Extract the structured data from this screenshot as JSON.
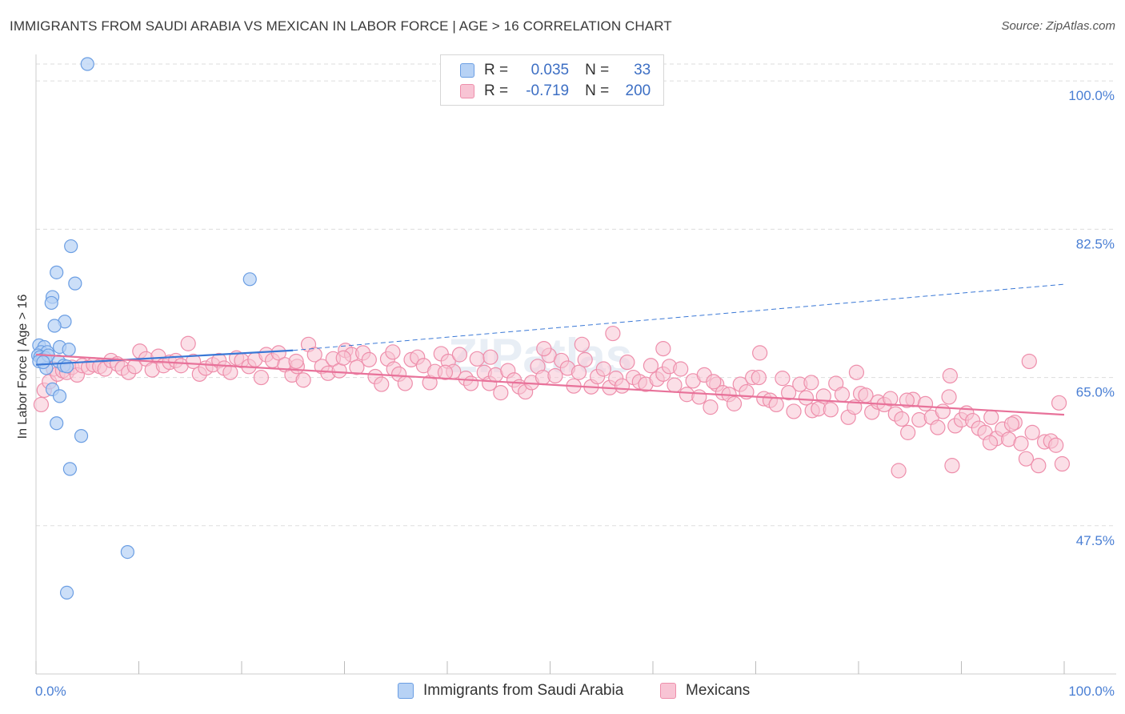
{
  "title": "IMMIGRANTS FROM SAUDI ARABIA VS MEXICAN IN LABOR FORCE | AGE > 16 CORRELATION CHART",
  "source": "Source: ZipAtlas.com",
  "watermark": "ZIPatlas",
  "legend": {
    "series1": {
      "r_label": "R =",
      "r_value": "0.035",
      "n_label": "N =",
      "n_value": "33"
    },
    "series2": {
      "r_label": "R =",
      "r_value": "-0.719",
      "n_label": "N =",
      "n_value": "200"
    }
  },
  "colors": {
    "blue_fill": "#b7d2f5",
    "blue_stroke": "#6b9ee3",
    "blue_line": "#3a78d6",
    "pink_fill": "#f8c4d4",
    "pink_stroke": "#ee8eab",
    "pink_line": "#e8729a",
    "grid": "#dddddd",
    "tick_text": "#4a7fd4"
  },
  "chart_data": {
    "type": "scatter",
    "title": "IMMIGRANTS FROM SAUDI ARABIA VS MEXICAN IN LABOR FORCE | AGE > 16 CORRELATION CHART",
    "xlabel": "",
    "ylabel": "In Labor Force | Age > 16",
    "xlim": [
      0,
      100
    ],
    "ylim": [
      30,
      102
    ],
    "x_tick_labels": [
      "0.0%",
      "100.0%"
    ],
    "y_ticks": [
      100,
      82.5,
      65,
      47.5
    ],
    "y_tick_labels": [
      "100.0%",
      "82.5%",
      "65.0%",
      "47.5%"
    ],
    "series": [
      {
        "name": "Immigrants from Saudi Arabia",
        "color": "blue",
        "trend": {
          "x": [
            0,
            25
          ],
          "y": [
            66.5,
            68.2
          ],
          "dashed_extension": {
            "x": [
              25,
              100
            ],
            "y": [
              68.2,
              76.0
            ]
          }
        },
        "points": [
          [
            5.0,
            102.0
          ],
          [
            3.4,
            80.5
          ],
          [
            2.0,
            77.4
          ],
          [
            3.8,
            76.1
          ],
          [
            20.8,
            76.6
          ],
          [
            1.6,
            74.5
          ],
          [
            1.5,
            73.8
          ],
          [
            2.8,
            71.6
          ],
          [
            1.8,
            71.1
          ],
          [
            0.3,
            68.8
          ],
          [
            0.8,
            68.6
          ],
          [
            2.3,
            68.6
          ],
          [
            3.2,
            68.3
          ],
          [
            0.5,
            68.0
          ],
          [
            1.1,
            68.0
          ],
          [
            0.2,
            67.6
          ],
          [
            0.4,
            67.4
          ],
          [
            0.9,
            67.3
          ],
          [
            0.6,
            67.1
          ],
          [
            0.3,
            66.9
          ],
          [
            1.2,
            67.6
          ],
          [
            2.2,
            66.9
          ],
          [
            2.7,
            66.4
          ],
          [
            1.0,
            66.1
          ],
          [
            3.0,
            66.3
          ],
          [
            1.6,
            63.6
          ],
          [
            2.3,
            62.8
          ],
          [
            2.0,
            59.6
          ],
          [
            4.4,
            58.1
          ],
          [
            3.3,
            54.2
          ],
          [
            8.9,
            44.4
          ],
          [
            3.0,
            39.6
          ],
          [
            0.7,
            66.8
          ]
        ]
      },
      {
        "name": "Mexicans",
        "color": "pink",
        "trend": {
          "x": [
            0,
            100
          ],
          "y": [
            67.7,
            60.6
          ]
        },
        "points": [
          [
            0.5,
            61.8
          ],
          [
            0.8,
            63.5
          ],
          [
            1.3,
            64.5
          ],
          [
            1.7,
            66.0
          ],
          [
            2.1,
            65.4
          ],
          [
            2.6,
            65.8
          ],
          [
            3.0,
            65.6
          ],
          [
            3.5,
            66.2
          ],
          [
            4.0,
            65.3
          ],
          [
            4.5,
            66.4
          ],
          [
            5.1,
            66.2
          ],
          [
            5.6,
            66.5
          ],
          [
            6.2,
            66.3
          ],
          [
            6.7,
            66.0
          ],
          [
            7.3,
            67.0
          ],
          [
            7.9,
            66.6
          ],
          [
            8.4,
            66.1
          ],
          [
            9.0,
            65.6
          ],
          [
            9.6,
            66.3
          ],
          [
            10.1,
            68.1
          ],
          [
            10.7,
            67.2
          ],
          [
            11.3,
            65.9
          ],
          [
            11.9,
            67.5
          ],
          [
            12.4,
            66.4
          ],
          [
            13.0,
            66.8
          ],
          [
            13.6,
            67.0
          ],
          [
            14.1,
            66.4
          ],
          [
            14.8,
            69.0
          ],
          [
            15.3,
            66.9
          ],
          [
            15.9,
            65.4
          ],
          [
            16.5,
            66.1
          ],
          [
            17.2,
            66.5
          ],
          [
            17.8,
            67.0
          ],
          [
            18.3,
            66.1
          ],
          [
            18.9,
            65.6
          ],
          [
            19.5,
            67.3
          ],
          [
            20.0,
            67.0
          ],
          [
            20.7,
            66.3
          ],
          [
            21.3,
            67.1
          ],
          [
            21.9,
            65.0
          ],
          [
            22.4,
            67.7
          ],
          [
            23.0,
            67.0
          ],
          [
            23.6,
            67.9
          ],
          [
            24.2,
            66.5
          ],
          [
            24.9,
            65.3
          ],
          [
            25.4,
            66.3
          ],
          [
            26.0,
            64.7
          ],
          [
            26.5,
            68.9
          ],
          [
            27.1,
            67.7
          ],
          [
            27.8,
            66.3
          ],
          [
            28.4,
            65.5
          ],
          [
            28.9,
            67.2
          ],
          [
            29.5,
            65.8
          ],
          [
            30.1,
            68.2
          ],
          [
            30.7,
            67.7
          ],
          [
            31.2,
            66.2
          ],
          [
            31.8,
            67.9
          ],
          [
            32.4,
            67.1
          ],
          [
            33.0,
            65.1
          ],
          [
            33.6,
            64.2
          ],
          [
            34.2,
            67.2
          ],
          [
            34.8,
            66.0
          ],
          [
            35.3,
            65.4
          ],
          [
            35.9,
            64.3
          ],
          [
            36.5,
            67.1
          ],
          [
            37.1,
            67.4
          ],
          [
            37.7,
            66.4
          ],
          [
            38.3,
            64.4
          ],
          [
            38.8,
            65.7
          ],
          [
            39.4,
            67.8
          ],
          [
            40.1,
            66.9
          ],
          [
            40.6,
            65.7
          ],
          [
            41.2,
            67.7
          ],
          [
            41.8,
            64.9
          ],
          [
            42.3,
            64.3
          ],
          [
            42.9,
            67.2
          ],
          [
            43.6,
            65.6
          ],
          [
            44.1,
            64.3
          ],
          [
            44.7,
            65.3
          ],
          [
            45.2,
            63.2
          ],
          [
            45.9,
            65.8
          ],
          [
            46.5,
            64.7
          ],
          [
            47.0,
            63.9
          ],
          [
            47.6,
            63.3
          ],
          [
            48.2,
            64.4
          ],
          [
            48.8,
            66.3
          ],
          [
            49.3,
            65.0
          ],
          [
            49.9,
            67.6
          ],
          [
            50.5,
            65.2
          ],
          [
            51.1,
            67.0
          ],
          [
            51.7,
            66.1
          ],
          [
            52.3,
            64.0
          ],
          [
            52.8,
            65.6
          ],
          [
            53.4,
            67.1
          ],
          [
            54.0,
            63.9
          ],
          [
            54.6,
            65.1
          ],
          [
            55.2,
            66.0
          ],
          [
            55.8,
            63.8
          ],
          [
            56.4,
            64.9
          ],
          [
            57.0,
            64.0
          ],
          [
            57.5,
            66.8
          ],
          [
            58.1,
            65.0
          ],
          [
            58.7,
            64.5
          ],
          [
            59.3,
            64.2
          ],
          [
            59.8,
            66.4
          ],
          [
            60.4,
            64.8
          ],
          [
            61.0,
            65.4
          ],
          [
            61.6,
            66.3
          ],
          [
            62.1,
            64.1
          ],
          [
            62.7,
            66.0
          ],
          [
            63.3,
            63.0
          ],
          [
            63.9,
            64.6
          ],
          [
            64.5,
            62.7
          ],
          [
            65.0,
            65.3
          ],
          [
            65.6,
            61.5
          ],
          [
            66.2,
            64.2
          ],
          [
            66.8,
            63.2
          ],
          [
            67.4,
            63.0
          ],
          [
            67.9,
            61.9
          ],
          [
            68.5,
            64.2
          ],
          [
            69.1,
            63.3
          ],
          [
            69.7,
            65.0
          ],
          [
            70.3,
            65.0
          ],
          [
            70.8,
            62.5
          ],
          [
            71.4,
            62.3
          ],
          [
            72.0,
            61.8
          ],
          [
            72.6,
            64.9
          ],
          [
            73.2,
            63.2
          ],
          [
            73.7,
            61.0
          ],
          [
            74.3,
            64.2
          ],
          [
            74.9,
            62.6
          ],
          [
            75.5,
            61.1
          ],
          [
            76.1,
            61.3
          ],
          [
            76.6,
            62.8
          ],
          [
            77.3,
            61.2
          ],
          [
            77.8,
            64.3
          ],
          [
            78.4,
            63.0
          ],
          [
            79.0,
            60.3
          ],
          [
            79.6,
            61.5
          ],
          [
            80.2,
            63.1
          ],
          [
            80.7,
            62.9
          ],
          [
            81.3,
            60.9
          ],
          [
            81.9,
            62.1
          ],
          [
            82.5,
            61.8
          ],
          [
            83.1,
            62.5
          ],
          [
            83.6,
            60.7
          ],
          [
            84.2,
            60.1
          ],
          [
            84.8,
            58.5
          ],
          [
            85.3,
            62.4
          ],
          [
            85.9,
            60.0
          ],
          [
            86.5,
            61.9
          ],
          [
            87.1,
            60.3
          ],
          [
            87.7,
            59.1
          ],
          [
            88.2,
            61.0
          ],
          [
            88.8,
            62.7
          ],
          [
            89.4,
            59.3
          ],
          [
            90.0,
            60.0
          ],
          [
            90.5,
            60.8
          ],
          [
            91.1,
            59.9
          ],
          [
            91.7,
            59.0
          ],
          [
            92.3,
            58.5
          ],
          [
            92.9,
            60.3
          ],
          [
            93.4,
            57.8
          ],
          [
            94.0,
            58.9
          ],
          [
            94.6,
            57.7
          ],
          [
            95.2,
            59.7
          ],
          [
            95.8,
            57.2
          ],
          [
            96.3,
            55.4
          ],
          [
            96.9,
            58.5
          ],
          [
            97.5,
            54.6
          ],
          [
            98.1,
            57.4
          ],
          [
            98.7,
            57.5
          ],
          [
            99.2,
            57.0
          ],
          [
            99.8,
            54.8
          ],
          [
            25.3,
            66.9
          ],
          [
            29.9,
            67.3
          ],
          [
            34.7,
            68.0
          ],
          [
            39.8,
            65.6
          ],
          [
            44.2,
            67.4
          ],
          [
            49.4,
            68.4
          ],
          [
            53.1,
            68.9
          ],
          [
            56.1,
            70.2
          ],
          [
            61.0,
            68.4
          ],
          [
            65.9,
            64.5
          ],
          [
            70.4,
            67.9
          ],
          [
            75.4,
            64.4
          ],
          [
            79.8,
            65.6
          ],
          [
            84.7,
            62.3
          ],
          [
            88.9,
            65.2
          ],
          [
            92.8,
            57.3
          ],
          [
            96.6,
            66.9
          ],
          [
            99.5,
            62.0
          ],
          [
            83.9,
            54.0
          ],
          [
            89.1,
            54.6
          ],
          [
            94.9,
            59.5
          ]
        ]
      }
    ]
  },
  "bottom_legend": [
    "Immigrants from Saudi Arabia",
    "Mexicans"
  ]
}
